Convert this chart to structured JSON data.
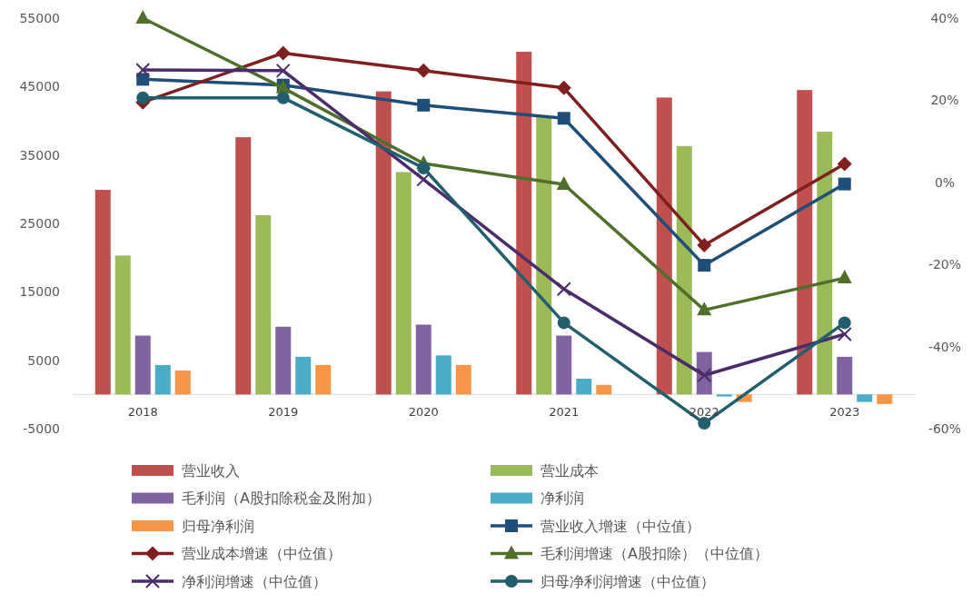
{
  "chart_data": {
    "type": "bar",
    "categories": [
      "2018",
      "2019",
      "2020",
      "2021",
      "2022",
      "2023"
    ],
    "ylim": [
      -5000,
      55000
    ],
    "yticks": [
      -5000,
      5000,
      15000,
      25000,
      35000,
      45000,
      55000
    ],
    "y2lim": [
      -60,
      40
    ],
    "y2ticks": [
      {
        "value": -60,
        "label": "-60%"
      },
      {
        "value": -40,
        "label": "-40%"
      },
      {
        "value": -20,
        "label": "-20%"
      },
      {
        "value": 0,
        "label": "0%"
      },
      {
        "value": 20,
        "label": "20%"
      },
      {
        "value": 40,
        "label": "40%"
      }
    ],
    "legend": "bottom",
    "grid": false,
    "series": [
      {
        "name": "营业收入",
        "color": "#c0504d",
        "values": [
          29900,
          37600,
          44300,
          50100,
          43400,
          44500
        ]
      },
      {
        "name": "营业成本",
        "color": "#9bbb59",
        "values": [
          20300,
          26200,
          32500,
          40500,
          36300,
          38400
        ]
      },
      {
        "name": "毛利润（A股扣除税金及附加）",
        "color": "#8064a2",
        "values": [
          8600,
          9900,
          10200,
          8600,
          6200,
          5500
        ]
      },
      {
        "name": "净利润",
        "color": "#4bacc6",
        "values": [
          4300,
          5500,
          5700,
          2300,
          -300,
          -1100
        ]
      },
      {
        "name": "归母净利润",
        "color": "#f79646",
        "values": [
          3500,
          4300,
          4300,
          1400,
          -1100,
          -1400
        ]
      },
      {
        "name": "营业收入增速（中位值）",
        "type": "line",
        "axis": "y2",
        "marker": "square",
        "color": "#1f4e79",
        "values": [
          25.1,
          23.7,
          18.8,
          15.6,
          -20.2,
          -0.4
        ]
      },
      {
        "name": "营业成本增速（中位值）",
        "type": "line",
        "axis": "y2",
        "marker": "diamond",
        "color": "#7f1f1f",
        "values": [
          19.5,
          31.5,
          27.2,
          23,
          -15.3,
          4.5
        ]
      },
      {
        "name": "毛利润增速（A股扣除）（中位值）",
        "type": "line",
        "axis": "y2",
        "marker": "triangle",
        "color": "#4f6f2a",
        "values": [
          40,
          23,
          4.6,
          -0.5,
          -31.1,
          -23.3
        ]
      },
      {
        "name": "净利润增速（中位值）",
        "type": "line",
        "axis": "y2",
        "marker": "cross",
        "color": "#4b2c6b",
        "values": [
          27.4,
          27.2,
          0.7,
          -26,
          -47,
          -37
        ]
      },
      {
        "name": "归母净利润增速（中位值）",
        "type": "line",
        "axis": "y2",
        "marker": "circle",
        "color": "#215f6e",
        "values": [
          20.6,
          20.6,
          3.5,
          -34.2,
          -58.7,
          -34.2
        ]
      }
    ]
  }
}
